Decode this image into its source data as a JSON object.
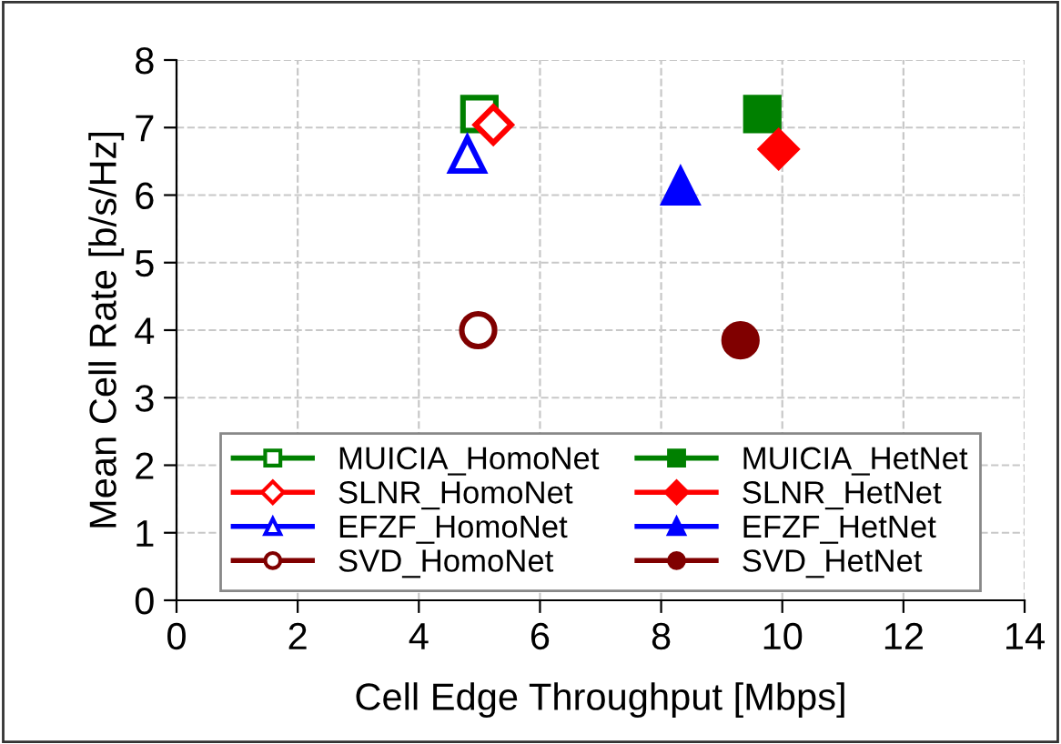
{
  "chart_data": {
    "type": "scatter",
    "xlabel": "Cell Edge Throughput [Mbps]",
    "ylabel": "Mean Cell Rate [b/s/Hz]",
    "xlim": [
      0,
      14
    ],
    "xticks": [
      0,
      2,
      4,
      6,
      8,
      10,
      12,
      14
    ],
    "ylim": [
      0,
      8
    ],
    "yticks": [
      0,
      1,
      2,
      3,
      4,
      5,
      6,
      7,
      8
    ],
    "grid": true,
    "legend": "bottom",
    "series": [
      {
        "name": "MUICIA_HomoNet",
        "color": "#008000",
        "marker": "square",
        "x": [
          5.0
        ],
        "values": [
          7.2
        ]
      },
      {
        "name": "MUICIA_HetNet",
        "color": "#008000",
        "marker": "square",
        "x": [
          9.67
        ],
        "values": [
          7.2
        ]
      },
      {
        "name": "SLNR_HomoNet",
        "color": "#ff0000",
        "marker": "diamond",
        "x": [
          5.23
        ],
        "values": [
          7.04
        ]
      },
      {
        "name": "SLNR_HetNet",
        "color": "#ff0000",
        "marker": "diamond",
        "x": [
          9.94
        ],
        "values": [
          6.68
        ]
      },
      {
        "name": "EFZF_HomoNet",
        "color": "#0000ff",
        "marker": "triangle",
        "x": [
          4.8
        ],
        "values": [
          6.6
        ]
      },
      {
        "name": "EFZF_HetNet",
        "color": "#0000ff",
        "marker": "triangle",
        "x": [
          8.32
        ],
        "values": [
          6.13
        ]
      },
      {
        "name": "SVD_HomoNet",
        "color": "#800000",
        "marker": "circle",
        "x": [
          4.98
        ],
        "values": [
          4.0
        ]
      },
      {
        "name": "SVD_HetNet",
        "color": "#800000",
        "marker": "circle",
        "x": [
          9.31
        ],
        "values": [
          3.85
        ]
      }
    ]
  }
}
